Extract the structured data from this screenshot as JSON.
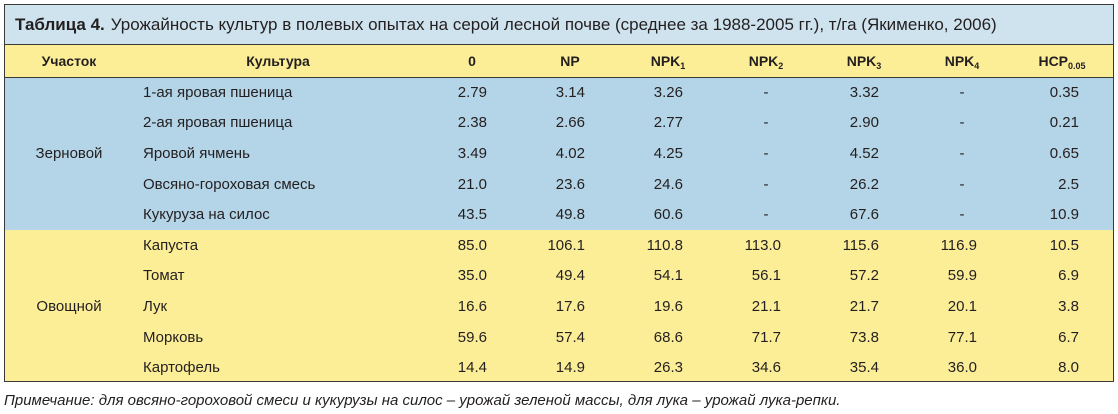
{
  "title": {
    "label": "Таблица 4.",
    "text": "Урожайность культур в полевых опытах на серой лесной почве (среднее за 1988-2005 гг.), т/га (Якименко, 2006)"
  },
  "headers": {
    "section": "Участок",
    "culture": "Культура",
    "zero": "0",
    "np": "NP",
    "npk1": "NPK",
    "npk1_sub": "1",
    "npk2": "NPK",
    "npk2_sub": "2",
    "npk3": "NPK",
    "npk3_sub": "3",
    "npk4": "NPK",
    "npk4_sub": "4",
    "hsr": "НСР",
    "hsr_sub": "0.05"
  },
  "sections": [
    {
      "name": "Зерновой",
      "color": "#b4d4e7",
      "rows": [
        {
          "culture": "1-ая яровая пшеница",
          "v0": "2.79",
          "np": "3.14",
          "npk1": "3.26",
          "npk2": "-",
          "npk3": "3.32",
          "npk4": "-",
          "hsr": "0.35"
        },
        {
          "culture": "2-ая яровая пшеница",
          "v0": "2.38",
          "np": "2.66",
          "npk1": "2.77",
          "npk2": "-",
          "npk3": "2.90",
          "npk4": "-",
          "hsr": "0.21"
        },
        {
          "culture": "Яровой ячмень",
          "v0": "3.49",
          "np": "4.02",
          "npk1": "4.25",
          "npk2": "-",
          "npk3": "4.52",
          "npk4": "-",
          "hsr": "0.65"
        },
        {
          "culture": "Овсяно-гороховая смесь",
          "v0": "21.0",
          "np": "23.6",
          "npk1": "24.6",
          "npk2": "-",
          "npk3": "26.2",
          "npk4": "-",
          "hsr": "2.5"
        },
        {
          "culture": "Кукуруза на силос",
          "v0": "43.5",
          "np": "49.8",
          "npk1": "60.6",
          "npk2": "-",
          "npk3": "67.6",
          "npk4": "-",
          "hsr": "10.9"
        }
      ]
    },
    {
      "name": "Овощной",
      "color": "#fcee97",
      "rows": [
        {
          "culture": "Капуста",
          "v0": "85.0",
          "np": "106.1",
          "npk1": "110.8",
          "npk2": "113.0",
          "npk3": "115.6",
          "npk4": "116.9",
          "hsr": "10.5"
        },
        {
          "culture": "Томат",
          "v0": "35.0",
          "np": "49.4",
          "npk1": "54.1",
          "npk2": "56.1",
          "npk3": "57.2",
          "npk4": "59.9",
          "hsr": "6.9"
        },
        {
          "culture": "Лук",
          "v0": "16.6",
          "np": "17.6",
          "npk1": "19.6",
          "npk2": "21.1",
          "npk3": "21.7",
          "npk4": "20.1",
          "hsr": "3.8"
        },
        {
          "culture": "Морковь",
          "v0": "59.6",
          "np": "57.4",
          "npk1": "68.6",
          "npk2": "71.7",
          "npk3": "73.8",
          "npk4": "77.1",
          "hsr": "6.7"
        },
        {
          "culture": "Картофель",
          "v0": "14.4",
          "np": "14.9",
          "npk1": "26.3",
          "npk2": "34.6",
          "npk3": "35.4",
          "npk4": "36.0",
          "hsr": "8.0"
        }
      ]
    }
  ],
  "note": "Примечание: для овсяно-гороховой смеси и кукурузы на силос – урожай зеленой массы, для лука – урожай лука-репки.",
  "colors": {
    "title_bg": "#cfe3ee",
    "header_bg": "#fcee97",
    "grain_bg": "#b4d4e7",
    "veg_bg": "#fcee97"
  }
}
